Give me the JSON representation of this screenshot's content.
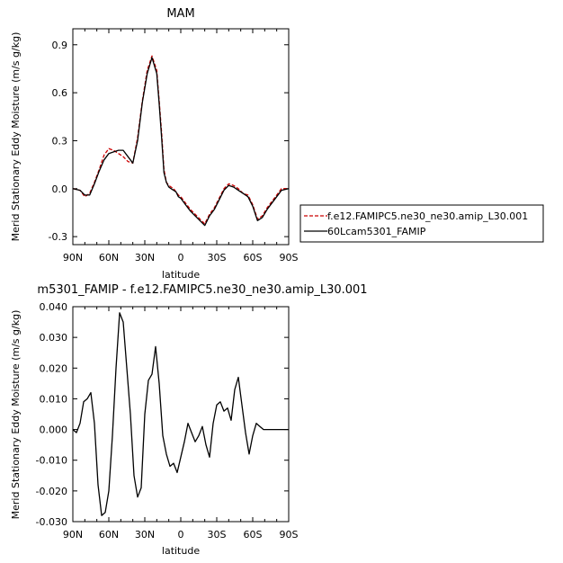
{
  "chart_data": [
    {
      "type": "line",
      "title": "MAM",
      "xlabel": "latitude",
      "ylabel": "Merid Stationary Eddy Moisture (m/s g/kg)",
      "x_ticklabels": [
        "90N",
        "60N",
        "30N",
        "0",
        "30S",
        "60S",
        "90S"
      ],
      "y_ticklabels": [
        "-0.3",
        "0.0",
        "0.3",
        "0.6",
        "0.9"
      ],
      "xlim": [
        90,
        -90
      ],
      "ylim": [
        -0.35,
        1.0
      ],
      "legend": [
        "f.e12.FAMIPC5.ne30_ne30.amip_L30.001",
        "60Lcam5301_FAMIP"
      ],
      "legend_position": "right",
      "series": [
        {
          "name": "f.e12.FAMIPC5.ne30_ne30.amip_L30.001",
          "color": "#cc0000",
          "dash": "dashed",
          "x": [
            90,
            84,
            80,
            76,
            72,
            68,
            64,
            60,
            56,
            52,
            48,
            44,
            40,
            36,
            32,
            28,
            24,
            20,
            18,
            16,
            14,
            12,
            10,
            8,
            6,
            4,
            2,
            0,
            -4,
            -8,
            -12,
            -16,
            -20,
            -24,
            -28,
            -32,
            -36,
            -40,
            -44,
            -48,
            -52,
            -56,
            -60,
            -64,
            -68,
            -72,
            -76,
            -80,
            -84,
            -90
          ],
          "y": [
            0.0,
            -0.01,
            -0.05,
            -0.03,
            0.04,
            0.12,
            0.21,
            0.25,
            0.24,
            0.22,
            0.2,
            0.17,
            0.16,
            0.32,
            0.55,
            0.74,
            0.83,
            0.74,
            0.55,
            0.35,
            0.12,
            0.04,
            0.02,
            0.01,
            0.0,
            -0.02,
            -0.04,
            -0.05,
            -0.09,
            -0.13,
            -0.16,
            -0.19,
            -0.22,
            -0.16,
            -0.12,
            -0.06,
            0.0,
            0.03,
            0.02,
            0.0,
            -0.03,
            -0.04,
            -0.1,
            -0.19,
            -0.17,
            -0.12,
            -0.08,
            -0.04,
            0.0,
            0.0
          ]
        },
        {
          "name": "60Lcam5301_FAMIP",
          "color": "#000000",
          "dash": "solid",
          "x": [
            90,
            84,
            80,
            76,
            72,
            68,
            64,
            60,
            56,
            52,
            48,
            44,
            40,
            36,
            32,
            28,
            24,
            20,
            18,
            16,
            14,
            12,
            10,
            8,
            6,
            4,
            2,
            0,
            -4,
            -8,
            -12,
            -16,
            -20,
            -24,
            -28,
            -32,
            -36,
            -40,
            -44,
            -48,
            -52,
            -56,
            -60,
            -64,
            -68,
            -72,
            -76,
            -80,
            -84,
            -90
          ],
          "y": [
            0.0,
            -0.01,
            -0.04,
            -0.04,
            0.03,
            0.11,
            0.18,
            0.22,
            0.23,
            0.24,
            0.24,
            0.2,
            0.16,
            0.3,
            0.54,
            0.72,
            0.82,
            0.72,
            0.53,
            0.32,
            0.1,
            0.04,
            0.01,
            0.0,
            -0.01,
            -0.02,
            -0.05,
            -0.06,
            -0.1,
            -0.14,
            -0.17,
            -0.2,
            -0.23,
            -0.17,
            -0.13,
            -0.07,
            -0.01,
            0.02,
            0.01,
            -0.01,
            -0.03,
            -0.05,
            -0.11,
            -0.2,
            -0.18,
            -0.13,
            -0.09,
            -0.05,
            -0.01,
            0.0
          ]
        }
      ]
    },
    {
      "type": "line",
      "title": "m5301_FAMIP - f.e12.FAMIPC5.ne30_ne30.amip_L30.001",
      "xlabel": "latitude",
      "ylabel": "Merid Stationary Eddy Moisture (m/s g/kg)",
      "x_ticklabels": [
        "90N",
        "60N",
        "30N",
        "0",
        "30S",
        "60S",
        "90S"
      ],
      "y_ticklabels": [
        "-0.030",
        "-0.020",
        "-0.010",
        "0.000",
        "0.010",
        "0.020",
        "0.030",
        "0.040"
      ],
      "xlim": [
        90,
        -90
      ],
      "ylim": [
        -0.03,
        0.04
      ],
      "series": [
        {
          "color": "#000000",
          "x": [
            90,
            87,
            84,
            81,
            78,
            75,
            72,
            69,
            66,
            63,
            60,
            57,
            54,
            51,
            48,
            45,
            42,
            39,
            36,
            33,
            30,
            27,
            24,
            21,
            18,
            15,
            12,
            9,
            6,
            3,
            0,
            -3,
            -6,
            -9,
            -12,
            -15,
            -18,
            -21,
            -24,
            -27,
            -30,
            -33,
            -36,
            -39,
            -42,
            -45,
            -48,
            -51,
            -54,
            -57,
            -60,
            -63,
            -66,
            -69,
            -72,
            -75,
            -78,
            -81,
            -84,
            -87,
            -90
          ],
          "y": [
            0.0,
            -0.001,
            0.002,
            0.009,
            0.01,
            0.012,
            0.002,
            -0.018,
            -0.028,
            -0.027,
            -0.02,
            -0.002,
            0.02,
            0.038,
            0.035,
            0.02,
            0.005,
            -0.015,
            -0.022,
            -0.019,
            0.005,
            0.016,
            0.018,
            0.027,
            0.015,
            -0.002,
            -0.008,
            -0.012,
            -0.011,
            -0.014,
            -0.009,
            -0.004,
            0.002,
            -0.001,
            -0.004,
            -0.002,
            0.001,
            -0.005,
            -0.009,
            0.002,
            0.008,
            0.009,
            0.006,
            0.007,
            0.003,
            0.013,
            0.017,
            0.008,
            -0.001,
            -0.008,
            -0.002,
            0.002,
            0.001,
            0.0,
            0.0,
            0.0,
            0.0,
            0.0,
            0.0,
            0.0,
            0.0
          ]
        }
      ]
    }
  ]
}
